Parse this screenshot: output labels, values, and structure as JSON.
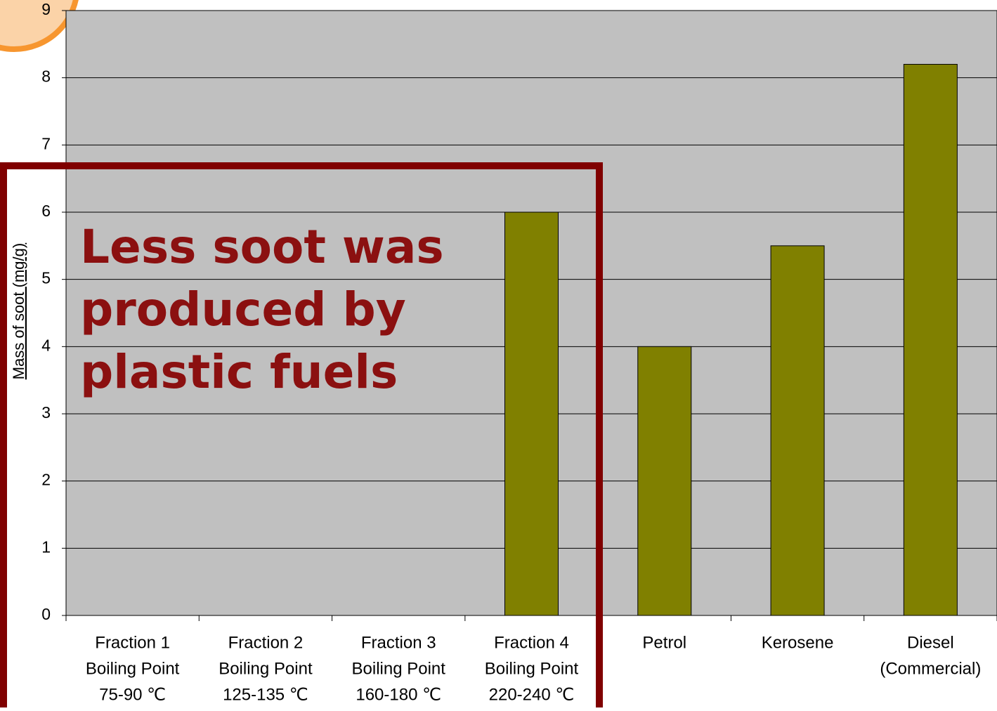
{
  "chart_data": {
    "type": "bar",
    "y_label": "Mass of soot (mg/g)",
    "annotation": [
      "Less soot was",
      "produced by",
      "plastic fuels"
    ],
    "categories": [
      [
        "Fraction 1",
        "Boiling Point",
        "75-90 ℃"
      ],
      [
        "Fraction 2",
        "Boiling Point",
        "125-135 ℃"
      ],
      [
        "Fraction 3",
        "Boiling Point",
        "160-180 ℃"
      ],
      [
        "Fraction 4",
        "Boiling Point",
        "220-240 ℃"
      ],
      [
        "Petrol"
      ],
      [
        "Kerosene"
      ],
      [
        "Diesel",
        "(Commercial)"
      ]
    ],
    "values": [
      0,
      0,
      0,
      6,
      4,
      5.5,
      8.2
    ],
    "color": "#808000",
    "ylim": [
      0,
      9
    ],
    "yticks": [
      0,
      1,
      2,
      3,
      4,
      5,
      6,
      7,
      8,
      9
    ],
    "grid": true
  }
}
